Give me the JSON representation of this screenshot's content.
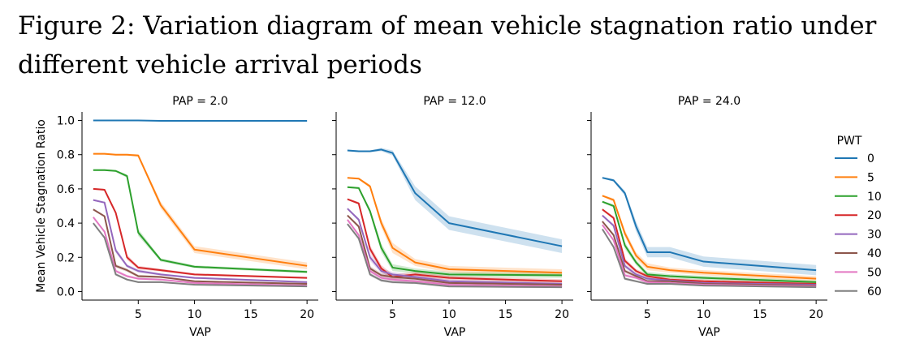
{
  "caption": "Figure 2: Variation diagram of mean vehicle stagnation ratio under different vehicle arrival periods",
  "legend": {
    "title": "PWT"
  },
  "colors": {
    "0": "#1f77b4",
    "5": "#ff7f0e",
    "10": "#2ca02c",
    "20": "#d62728",
    "30": "#9467bd",
    "40": "#8c564b",
    "50": "#e377c2",
    "60": "#7f7f7f"
  },
  "chart_data": [
    {
      "type": "line",
      "title": "PAP = 2.0",
      "xlabel": "VAP",
      "ylabel": "Mean Vehicle Stagnation Ratio",
      "x": [
        1,
        2,
        3,
        4,
        5,
        7,
        10,
        20
      ],
      "xticks": [
        "5",
        "10",
        "15",
        "20"
      ],
      "yticks": [
        "0.0",
        "0.2",
        "0.4",
        "0.6",
        "0.8",
        "1.0"
      ],
      "xlim": [
        0,
        21
      ],
      "ylim": [
        -0.05,
        1.05
      ],
      "legend": "right",
      "series": [
        {
          "name": "0",
          "values": [
            1.0,
            1.0,
            1.0,
            1.0,
            1.0,
            0.998,
            0.998,
            0.998
          ],
          "ci": [
            0.003,
            0.003,
            0.003,
            0.003,
            0.003,
            0.003,
            0.003,
            0.003
          ]
        },
        {
          "name": "5",
          "values": [
            0.805,
            0.805,
            0.8,
            0.8,
            0.795,
            0.505,
            0.245,
            0.15
          ],
          "ci": [
            0.005,
            0.005,
            0.005,
            0.005,
            0.008,
            0.02,
            0.02,
            0.02
          ]
        },
        {
          "name": "10",
          "values": [
            0.71,
            0.71,
            0.705,
            0.675,
            0.345,
            0.185,
            0.145,
            0.115
          ],
          "ci": [
            0.005,
            0.005,
            0.005,
            0.01,
            0.02,
            0.01,
            0.008,
            0.008
          ]
        },
        {
          "name": "20",
          "values": [
            0.6,
            0.595,
            0.46,
            0.2,
            0.14,
            0.125,
            0.1,
            0.08
          ],
          "ci": [
            0.005,
            0.005,
            0.01,
            0.015,
            0.01,
            0.008,
            0.006,
            0.006
          ]
        },
        {
          "name": "30",
          "values": [
            0.535,
            0.52,
            0.24,
            0.15,
            0.12,
            0.1,
            0.08,
            0.055
          ],
          "ci": [
            0.005,
            0.005,
            0.015,
            0.01,
            0.01,
            0.006,
            0.006,
            0.005
          ]
        },
        {
          "name": "40",
          "values": [
            0.48,
            0.44,
            0.15,
            0.125,
            0.09,
            0.085,
            0.06,
            0.045
          ],
          "ci": [
            0.005,
            0.005,
            0.01,
            0.01,
            0.008,
            0.006,
            0.005,
            0.005
          ]
        },
        {
          "name": "50",
          "values": [
            0.435,
            0.35,
            0.12,
            0.09,
            0.075,
            0.07,
            0.05,
            0.035
          ],
          "ci": [
            0.005,
            0.005,
            0.01,
            0.008,
            0.006,
            0.005,
            0.005,
            0.004
          ]
        },
        {
          "name": "60",
          "values": [
            0.4,
            0.315,
            0.1,
            0.07,
            0.055,
            0.055,
            0.04,
            0.03
          ],
          "ci": [
            0.005,
            0.005,
            0.008,
            0.006,
            0.005,
            0.005,
            0.004,
            0.004
          ]
        }
      ]
    },
    {
      "type": "line",
      "title": "PAP = 12.0",
      "xlabel": "VAP",
      "ylabel": "",
      "x": [
        1,
        2,
        3,
        4,
        5,
        7,
        10,
        20
      ],
      "xticks": [
        "5",
        "10",
        "15",
        "20"
      ],
      "yticks": [
        "0.0",
        "0.2",
        "0.4",
        "0.6",
        "0.8",
        "1.0"
      ],
      "xlim": [
        0,
        21
      ],
      "ylim": [
        -0.05,
        1.05
      ],
      "series": [
        {
          "name": "0",
          "values": [
            0.825,
            0.82,
            0.82,
            0.83,
            0.81,
            0.575,
            0.4,
            0.265
          ],
          "ci": [
            0.005,
            0.005,
            0.005,
            0.01,
            0.015,
            0.04,
            0.04,
            0.04
          ]
        },
        {
          "name": "5",
          "values": [
            0.665,
            0.66,
            0.615,
            0.4,
            0.255,
            0.17,
            0.13,
            0.11
          ],
          "ci": [
            0.005,
            0.005,
            0.01,
            0.025,
            0.03,
            0.02,
            0.02,
            0.02
          ]
        },
        {
          "name": "10",
          "values": [
            0.61,
            0.605,
            0.47,
            0.255,
            0.14,
            0.12,
            0.1,
            0.095
          ],
          "ci": [
            0.005,
            0.005,
            0.015,
            0.025,
            0.02,
            0.015,
            0.015,
            0.015
          ]
        },
        {
          "name": "20",
          "values": [
            0.54,
            0.515,
            0.25,
            0.135,
            0.085,
            0.1,
            0.08,
            0.06
          ],
          "ci": [
            0.005,
            0.008,
            0.02,
            0.02,
            0.015,
            0.015,
            0.012,
            0.012
          ]
        },
        {
          "name": "30",
          "values": [
            0.485,
            0.42,
            0.2,
            0.12,
            0.1,
            0.085,
            0.06,
            0.045
          ],
          "ci": [
            0.005,
            0.01,
            0.02,
            0.015,
            0.015,
            0.012,
            0.01,
            0.01
          ]
        },
        {
          "name": "40",
          "values": [
            0.445,
            0.38,
            0.135,
            0.095,
            0.085,
            0.075,
            0.05,
            0.04
          ],
          "ci": [
            0.005,
            0.01,
            0.015,
            0.012,
            0.012,
            0.01,
            0.01,
            0.008
          ]
        },
        {
          "name": "50",
          "values": [
            0.42,
            0.33,
            0.12,
            0.08,
            0.07,
            0.06,
            0.04,
            0.03
          ],
          "ci": [
            0.005,
            0.01,
            0.012,
            0.01,
            0.01,
            0.008,
            0.008,
            0.006
          ]
        },
        {
          "name": "60",
          "values": [
            0.395,
            0.31,
            0.1,
            0.065,
            0.055,
            0.05,
            0.03,
            0.025
          ],
          "ci": [
            0.005,
            0.01,
            0.01,
            0.008,
            0.008,
            0.006,
            0.006,
            0.005
          ]
        }
      ]
    },
    {
      "type": "line",
      "title": "PAP = 24.0",
      "xlabel": "VAP",
      "ylabel": "",
      "x": [
        1,
        2,
        3,
        4,
        5,
        7,
        10,
        20
      ],
      "xticks": [
        "5",
        "10",
        "15",
        "20"
      ],
      "yticks": [
        "0.0",
        "0.2",
        "0.4",
        "0.6",
        "0.8",
        "1.0"
      ],
      "xlim": [
        0,
        21
      ],
      "ylim": [
        -0.05,
        1.05
      ],
      "series": [
        {
          "name": "0",
          "values": [
            0.665,
            0.65,
            0.575,
            0.38,
            0.23,
            0.23,
            0.175,
            0.125
          ],
          "ci": [
            0.005,
            0.008,
            0.015,
            0.03,
            0.03,
            0.03,
            0.03,
            0.03
          ]
        },
        {
          "name": "5",
          "values": [
            0.56,
            0.535,
            0.34,
            0.21,
            0.145,
            0.125,
            0.11,
            0.075
          ],
          "ci": [
            0.005,
            0.01,
            0.02,
            0.02,
            0.02,
            0.015,
            0.015,
            0.015
          ]
        },
        {
          "name": "10",
          "values": [
            0.525,
            0.5,
            0.27,
            0.17,
            0.1,
            0.09,
            0.08,
            0.055
          ],
          "ci": [
            0.005,
            0.01,
            0.02,
            0.015,
            0.015,
            0.012,
            0.012,
            0.01
          ]
        },
        {
          "name": "20",
          "values": [
            0.48,
            0.43,
            0.18,
            0.12,
            0.09,
            0.07,
            0.06,
            0.045
          ],
          "ci": [
            0.005,
            0.01,
            0.015,
            0.012,
            0.012,
            0.01,
            0.01,
            0.008
          ]
        },
        {
          "name": "30",
          "values": [
            0.445,
            0.385,
            0.15,
            0.1,
            0.075,
            0.065,
            0.05,
            0.04
          ],
          "ci": [
            0.005,
            0.01,
            0.012,
            0.01,
            0.01,
            0.008,
            0.008,
            0.006
          ]
        },
        {
          "name": "40",
          "values": [
            0.41,
            0.33,
            0.12,
            0.09,
            0.06,
            0.06,
            0.045,
            0.035
          ],
          "ci": [
            0.005,
            0.01,
            0.01,
            0.01,
            0.008,
            0.008,
            0.006,
            0.006
          ]
        },
        {
          "name": "50",
          "values": [
            0.39,
            0.3,
            0.095,
            0.08,
            0.055,
            0.05,
            0.04,
            0.03
          ],
          "ci": [
            0.005,
            0.01,
            0.01,
            0.008,
            0.008,
            0.006,
            0.006,
            0.005
          ]
        },
        {
          "name": "60",
          "values": [
            0.365,
            0.26,
            0.075,
            0.06,
            0.045,
            0.045,
            0.035,
            0.025
          ],
          "ci": [
            0.005,
            0.01,
            0.008,
            0.006,
            0.006,
            0.005,
            0.005,
            0.004
          ]
        }
      ]
    }
  ]
}
